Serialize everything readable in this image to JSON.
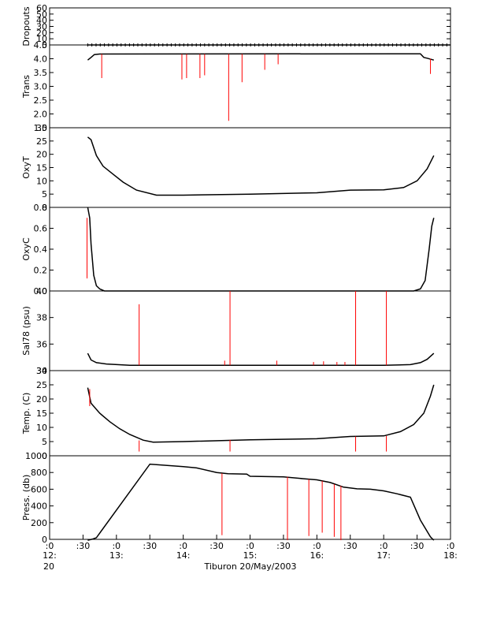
{
  "chart_data": {
    "type": "line",
    "xlabel": "Tiburon 20/May/2003",
    "x_ticks": [
      {
        "t": 12.0,
        "top": ":0",
        "bottom": "12:"
      },
      {
        "t": 12.5,
        "top": ":30",
        "bottom": ""
      },
      {
        "t": 13.0,
        "top": ":0",
        "bottom": "13:"
      },
      {
        "t": 13.5,
        "top": ":30",
        "bottom": ""
      },
      {
        "t": 14.0,
        "top": ":0",
        "bottom": "14:"
      },
      {
        "t": 14.5,
        "top": ":30",
        "bottom": ""
      },
      {
        "t": 15.0,
        "top": ":0",
        "bottom": "15:"
      },
      {
        "t": 15.5,
        "top": ":30",
        "bottom": ""
      },
      {
        "t": 16.0,
        "top": ":0",
        "bottom": "16:"
      },
      {
        "t": 16.5,
        "top": ":30",
        "bottom": ""
      },
      {
        "t": 17.0,
        "top": ":0",
        "bottom": "17:"
      },
      {
        "t": 17.5,
        "top": ":30",
        "bottom": ""
      },
      {
        "t": 18.0,
        "top": ":0",
        "bottom": "18:"
      }
    ],
    "x_extra_label": "20",
    "xlim": [
      12.0,
      18.0
    ],
    "colors": {
      "data": "#000000",
      "spikes": "#ff0000",
      "axis": "#000000"
    },
    "panels": [
      {
        "id": "dropouts",
        "ylabel": "Dropouts",
        "ylim": [
          0,
          60
        ],
        "yticks": [
          0,
          10,
          20,
          30,
          40,
          50,
          60
        ],
        "series": [
          {
            "x": [
              12.57,
              18.0
            ],
            "y": [
              0,
              0
            ]
          }
        ],
        "spikes": [],
        "markers": true
      },
      {
        "id": "trans",
        "ylabel": "Trans",
        "ylim": [
          1.5,
          4.5
        ],
        "yticks": [
          1.5,
          2.0,
          2.5,
          3.0,
          3.5,
          4.0,
          4.5
        ],
        "series": [
          {
            "x": [
              12.57,
              12.62,
              12.67,
              12.75,
              17.55,
              17.6,
              17.65,
              17.75
            ],
            "y": [
              3.95,
              4.05,
              4.15,
              4.17,
              4.18,
              4.05,
              4.02,
              3.95
            ]
          }
        ],
        "spikes": [
          {
            "x": 12.78,
            "from": 4.17,
            "to": 3.3
          },
          {
            "x": 13.98,
            "from": 4.17,
            "to": 3.25
          },
          {
            "x": 14.05,
            "from": 4.17,
            "to": 3.3
          },
          {
            "x": 14.25,
            "from": 4.17,
            "to": 3.3
          },
          {
            "x": 14.32,
            "from": 4.17,
            "to": 3.4
          },
          {
            "x": 14.68,
            "from": 4.17,
            "to": 1.75
          },
          {
            "x": 14.88,
            "from": 4.17,
            "to": 3.15
          },
          {
            "x": 15.22,
            "from": 4.17,
            "to": 3.6
          },
          {
            "x": 15.42,
            "from": 4.17,
            "to": 3.8
          },
          {
            "x": 17.7,
            "from": 4.0,
            "to": 3.45
          }
        ]
      },
      {
        "id": "oxyt",
        "ylabel": "OxyT",
        "ylim": [
          0,
          30
        ],
        "yticks": [
          0,
          5,
          10,
          15,
          20,
          25,
          30
        ],
        "series": [
          {
            "x": [
              12.57,
              12.62,
              12.7,
              12.8,
              12.95,
              13.1,
              13.3,
              13.6,
              14.0,
              15.0,
              16.0,
              16.5,
              17.0,
              17.3,
              17.5,
              17.65,
              17.75
            ],
            "y": [
              26.5,
              25.5,
              19.5,
              15.5,
              12.5,
              9.5,
              6.5,
              4.6,
              4.6,
              5.0,
              5.5,
              6.5,
              6.6,
              7.5,
              10.0,
              14.5,
              19.5
            ]
          }
        ],
        "spikes": []
      },
      {
        "id": "oxyc",
        "ylabel": "OxyC",
        "ylim": [
          0,
          0.8
        ],
        "yticks": [
          0.0,
          0.2,
          0.4,
          0.6,
          0.8
        ],
        "series": [
          {
            "x": [
              12.57,
              12.6,
              12.62,
              12.66,
              12.7,
              12.75,
              12.82,
              17.45,
              17.55,
              17.62,
              17.68,
              17.72,
              17.75
            ],
            "y": [
              0.8,
              0.7,
              0.45,
              0.15,
              0.05,
              0.02,
              0.0,
              0.0,
              0.02,
              0.1,
              0.4,
              0.62,
              0.7
            ]
          }
        ],
        "spikes": [
          {
            "x": 12.56,
            "from": 0.7,
            "to": 0.12
          }
        ]
      },
      {
        "id": "sal78",
        "ylabel": "Sal78 (psu)",
        "ylim": [
          34,
          40
        ],
        "yticks": [
          34,
          36,
          38,
          40
        ],
        "series": [
          {
            "x": [
              12.57,
              12.62,
              12.7,
              12.85,
              13.2,
              14.0,
              15.0,
              16.0,
              17.0,
              17.4,
              17.55,
              17.65,
              17.75
            ],
            "y": [
              35.3,
              34.8,
              34.6,
              34.5,
              34.4,
              34.4,
              34.4,
              34.4,
              34.4,
              34.45,
              34.6,
              34.85,
              35.3
            ]
          }
        ],
        "spikes": [
          {
            "x": 13.34,
            "from": 34.4,
            "to": 39.0
          },
          {
            "x": 14.7,
            "from": 34.4,
            "to": 40.0
          },
          {
            "x": 16.58,
            "from": 34.4,
            "to": 40.0
          },
          {
            "x": 17.04,
            "from": 34.4,
            "to": 40.0
          },
          {
            "x": 14.62,
            "from": 34.4,
            "to": 34.75
          },
          {
            "x": 15.4,
            "from": 34.4,
            "to": 34.75
          },
          {
            "x": 15.95,
            "from": 34.4,
            "to": 34.65
          },
          {
            "x": 16.1,
            "from": 34.4,
            "to": 34.7
          },
          {
            "x": 16.3,
            "from": 34.4,
            "to": 34.65
          },
          {
            "x": 16.42,
            "from": 34.4,
            "to": 34.65
          }
        ]
      },
      {
        "id": "temp",
        "ylabel": "Temp. (C)",
        "ylim": [
          0,
          30
        ],
        "yticks": [
          0,
          5,
          10,
          15,
          20,
          25,
          30
        ],
        "series": [
          {
            "x": [
              12.57,
              12.62,
              12.75,
              12.9,
              13.05,
              13.2,
              13.4,
              13.55,
              14.0,
              15.0,
              16.0,
              16.5,
              17.0,
              17.25,
              17.45,
              17.6,
              17.7,
              17.75
            ],
            "y": [
              24.0,
              18.5,
              15.0,
              12.0,
              9.5,
              7.5,
              5.5,
              4.8,
              5.0,
              5.6,
              6.0,
              6.8,
              7.0,
              8.5,
              11.0,
              15.0,
              21.0,
              25.0
            ]
          }
        ],
        "spikes": [
          {
            "x": 12.6,
            "from": 23.5,
            "to": 17.5
          },
          {
            "x": 13.34,
            "from": 5.4,
            "to": 1.5
          },
          {
            "x": 14.7,
            "from": 5.6,
            "to": 1.5
          },
          {
            "x": 16.58,
            "from": 6.8,
            "to": 1.5
          },
          {
            "x": 17.04,
            "from": 7.0,
            "to": 1.5
          }
        ]
      },
      {
        "id": "press",
        "ylabel": "Press. (db)",
        "ylim": [
          0,
          1000
        ],
        "yticks": [
          0,
          200,
          400,
          600,
          800,
          1000
        ],
        "series": [
          {
            "x": [
              12.57,
              12.65,
              12.7,
              13.5,
              14.0,
              14.2,
              14.5,
              14.67,
              14.95,
              15.0,
              15.5,
              15.8,
              16.0,
              16.2,
              16.4,
              16.6,
              16.8,
              17.0,
              17.2,
              17.4,
              17.55,
              17.7,
              17.75
            ],
            "y": [
              -10,
              5,
              20,
              900,
              870,
              855,
              800,
              785,
              780,
              755,
              748,
              725,
              712,
              680,
              625,
              605,
              600,
              580,
              545,
              505,
              230,
              30,
              -10
            ]
          }
        ],
        "spikes": [
          {
            "x": 14.58,
            "from": 790,
            "to": 50
          },
          {
            "x": 15.56,
            "from": 748,
            "to": -10
          },
          {
            "x": 15.88,
            "from": 720,
            "to": 40
          },
          {
            "x": 16.08,
            "from": 700,
            "to": 80
          },
          {
            "x": 16.26,
            "from": 660,
            "to": 30
          },
          {
            "x": 16.36,
            "from": 640,
            "to": -10
          }
        ]
      }
    ]
  }
}
